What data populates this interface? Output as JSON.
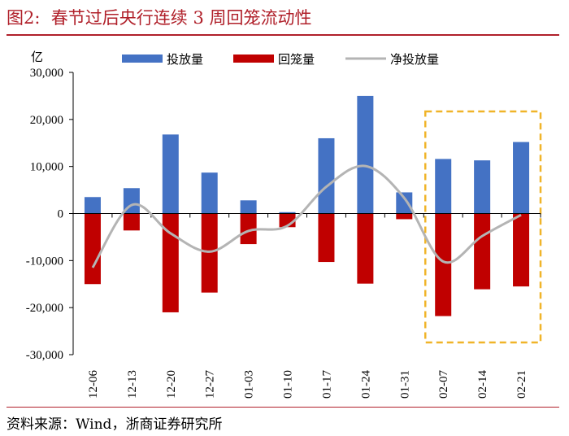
{
  "header": {
    "title": "图2:  春节过后央行连续 3 周回笼流动性"
  },
  "footer": {
    "source": "资料来源：Wind，浙商证券研究所"
  },
  "chart_data": {
    "type": "bar",
    "ylabel": "亿",
    "ylim": [
      -30000,
      30000
    ],
    "yticks": [
      30000,
      20000,
      10000,
      0,
      -10000,
      -20000,
      -30000
    ],
    "ytick_labels": [
      "30,000",
      "20,000",
      "10,000",
      "0",
      "-10,000",
      "-20,000",
      "-30,000"
    ],
    "categories": [
      "12-06",
      "12-13",
      "12-20",
      "12-27",
      "01-03",
      "01-10",
      "01-17",
      "01-24",
      "01-31",
      "02-07",
      "02-14",
      "02-21"
    ],
    "legend_position": "top",
    "grid": false,
    "highlight": {
      "from": "02-07",
      "to": "02-21",
      "color": "#f0b429"
    },
    "series": [
      {
        "name": "投放量",
        "type": "bar",
        "color": "#4472c4",
        "values": [
          3500,
          5400,
          16800,
          8700,
          2800,
          300,
          16000,
          25000,
          4500,
          11600,
          11300,
          15200
        ]
      },
      {
        "name": "回笼量",
        "type": "bar",
        "color": "#c00000",
        "values": [
          -15000,
          -3600,
          -21000,
          -16800,
          -6500,
          -2900,
          -10300,
          -14900,
          -1200,
          -21800,
          -16100,
          -15500
        ]
      },
      {
        "name": "净投放量",
        "type": "line",
        "color": "#b4b4b4",
        "values": [
          -11500,
          1800,
          -4200,
          -8100,
          -3700,
          -2600,
          5700,
          10100,
          3300,
          -10200,
          -4800,
          -300
        ]
      }
    ]
  }
}
